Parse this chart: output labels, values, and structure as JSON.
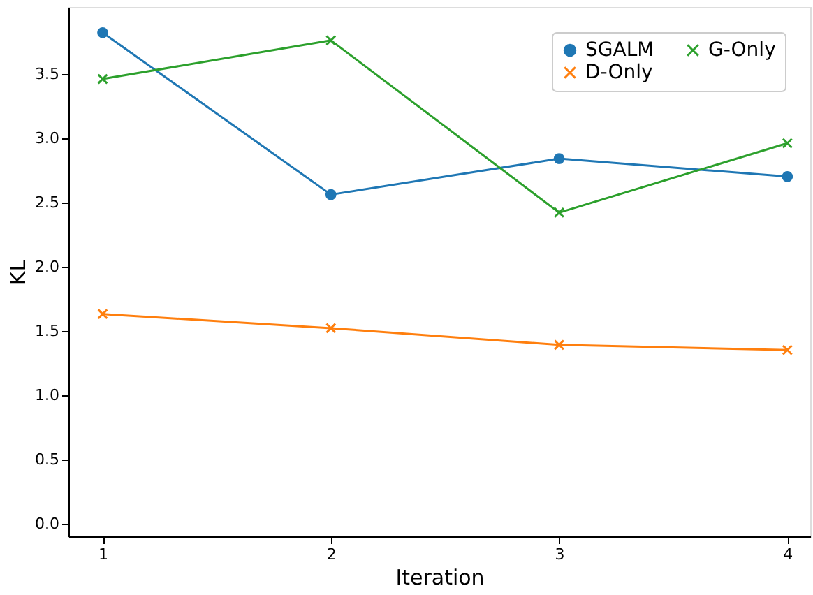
{
  "chart_data": {
    "type": "line",
    "xlabel": "Iteration",
    "ylabel": "KL",
    "x": [
      1,
      2,
      3,
      4
    ],
    "series": [
      {
        "name": "SGALM",
        "color": "#1f77b4",
        "marker": "circle",
        "values": [
          3.82,
          2.56,
          2.84,
          2.7
        ]
      },
      {
        "name": "D-Only",
        "color": "#ff7f0e",
        "marker": "cross",
        "values": [
          1.63,
          1.52,
          1.39,
          1.35
        ]
      },
      {
        "name": "G-Only",
        "color": "#2ca02c",
        "marker": "cross",
        "values": [
          3.46,
          3.76,
          2.42,
          2.96
        ]
      }
    ],
    "xlim": [
      0.85,
      4.1
    ],
    "xticks": [
      1,
      2,
      3,
      4
    ],
    "ylim": [
      -0.1,
      4.02
    ],
    "yticks": [
      {
        "value": 0,
        "label": "0.0"
      },
      0.5,
      {
        "value": 1,
        "label": "1.0"
      },
      1.5,
      {
        "value": 2,
        "label": "2.0"
      },
      2.5,
      {
        "value": 3,
        "label": "3.0"
      },
      3.5
    ],
    "grid": false,
    "legend": "top right",
    "line_style": "solid"
  }
}
